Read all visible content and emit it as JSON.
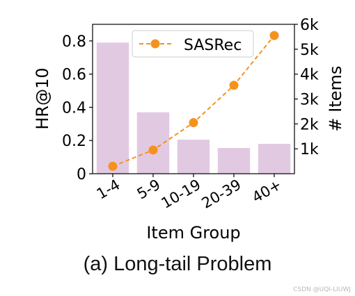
{
  "chart_data": {
    "type": "bar",
    "categories": [
      "1-4",
      "5-9",
      "10-19",
      "20-39",
      "40+"
    ],
    "bars": {
      "name": "",
      "axis": "left",
      "values": [
        0.79,
        0.37,
        0.205,
        0.155,
        0.18
      ],
      "color": "#e2c9e2"
    },
    "line_series": [
      {
        "name": "SASRec",
        "axis": "right",
        "values": [
          300,
          950,
          2050,
          3550,
          5550
        ],
        "color": "#f5921e"
      }
    ],
    "xlabel": "Item Group",
    "ylabel_left": "HR@10",
    "ylabel_right": "# Items",
    "ylim_left": [
      0,
      0.9
    ],
    "ylim_right": [
      0,
      6000
    ],
    "yticks_left": [
      "0",
      "0.2",
      "0.4",
      "0.6",
      "0.8"
    ],
    "yticks_left_values": [
      0,
      0.2,
      0.4,
      0.6,
      0.8
    ],
    "yticks_right": [
      "1k",
      "2k",
      "3k",
      "4k",
      "5k",
      "6k"
    ],
    "yticks_right_values": [
      1000,
      2000,
      3000,
      4000,
      5000,
      6000
    ],
    "legend_placement": "top-center",
    "grid": false
  },
  "caption": "(a) Long-tail Problem",
  "watermark": "CSDN @UQI-LIUWJ"
}
